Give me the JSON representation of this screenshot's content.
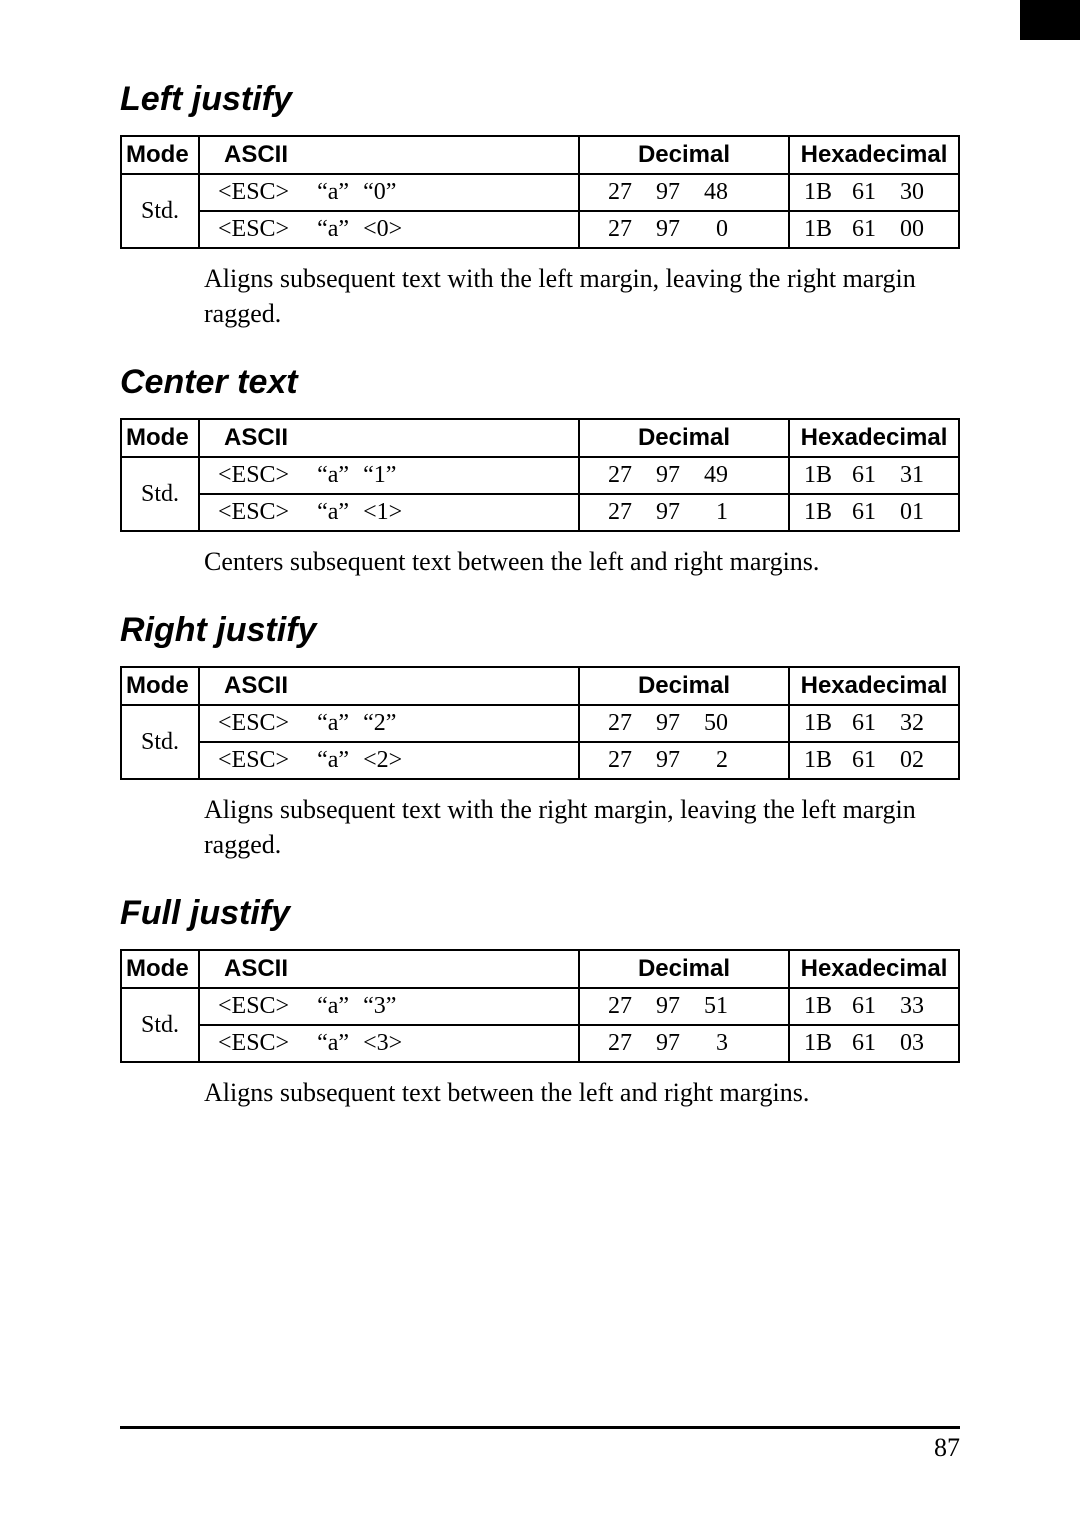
{
  "columns": {
    "mode": "Mode",
    "ascii": "ASCII",
    "decimal": "Decimal",
    "hex": "Hexadecimal"
  },
  "page_number": "87",
  "sections": [
    {
      "title": "Left justify",
      "mode": "Std.",
      "rows": [
        {
          "ascii_1": "<ESC>",
          "ascii_2": "“a”",
          "ascii_3": "“0”",
          "d1": "27",
          "d2": "97",
          "d3": "48",
          "h1": "1B",
          "h2": "61",
          "h3": "30"
        },
        {
          "ascii_1": "<ESC>",
          "ascii_2": "“a”",
          "ascii_3": "<0>",
          "d1": "27",
          "d2": "97",
          "d3": "0",
          "h1": "1B",
          "h2": "61",
          "h3": "00"
        }
      ],
      "description": "Aligns subsequent text with the left margin, leaving the right margin ragged."
    },
    {
      "title": "Center text",
      "mode": "Std.",
      "rows": [
        {
          "ascii_1": "<ESC>",
          "ascii_2": "“a”",
          "ascii_3": "“1”",
          "d1": "27",
          "d2": "97",
          "d3": "49",
          "h1": "1B",
          "h2": "61",
          "h3": "31"
        },
        {
          "ascii_1": "<ESC>",
          "ascii_2": "“a”",
          "ascii_3": "<1>",
          "d1": "27",
          "d2": "97",
          "d3": "1",
          "h1": "1B",
          "h2": "61",
          "h3": "01"
        }
      ],
      "description": "Centers subsequent text between the left and right margins."
    },
    {
      "title": "Right justify",
      "mode": "Std.",
      "rows": [
        {
          "ascii_1": "<ESC>",
          "ascii_2": "“a”",
          "ascii_3": "“2”",
          "d1": "27",
          "d2": "97",
          "d3": "50",
          "h1": "1B",
          "h2": "61",
          "h3": "32"
        },
        {
          "ascii_1": "<ESC>",
          "ascii_2": "“a”",
          "ascii_3": "<2>",
          "d1": "27",
          "d2": "97",
          "d3": "2",
          "h1": "1B",
          "h2": "61",
          "h3": "02"
        }
      ],
      "description": "Aligns subsequent text with the right margin, leaving the left margin ragged."
    },
    {
      "title": "Full justify",
      "mode": "Std.",
      "rows": [
        {
          "ascii_1": "<ESC>",
          "ascii_2": "“a”",
          "ascii_3": "“3”",
          "d1": "27",
          "d2": "97",
          "d3": "51",
          "h1": "1B",
          "h2": "61",
          "h3": "33"
        },
        {
          "ascii_1": "<ESC>",
          "ascii_2": "“a”",
          "ascii_3": "<3>",
          "d1": "27",
          "d2": "97",
          "d3": "3",
          "h1": "1B",
          "h2": "61",
          "h3": "03"
        }
      ],
      "description": "Aligns subsequent text between the left and right margins."
    }
  ]
}
